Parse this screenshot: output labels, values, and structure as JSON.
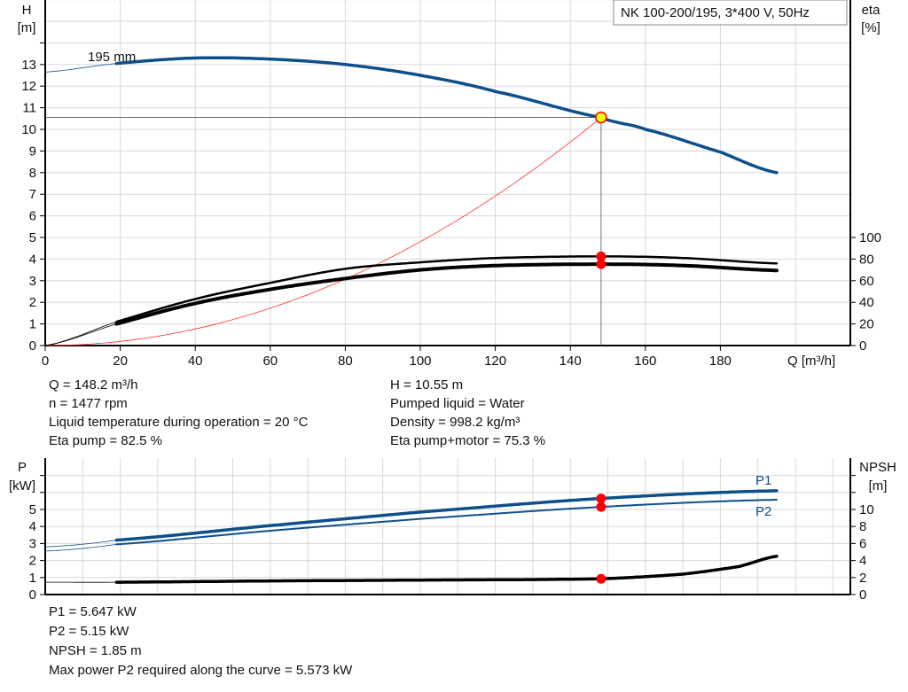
{
  "title_box": "NK 100-200/195, 3*400 V, 50Hz",
  "colors": {
    "pump_curve": "#0d4f8b",
    "efficiency": "#000000",
    "system_curve": "#ff3030",
    "duty_point_fill": "#ffff00",
    "duty_point_edge": "#ff0000",
    "marker": "#ff0000",
    "grid": "#d8d8d8"
  },
  "chart_data": [
    {
      "type": "line",
      "xlabel": "Q [m³/h]",
      "ylabel_left": [
        "H",
        "[m]"
      ],
      "ylabel_right": [
        "eta",
        "[%]"
      ],
      "xlim": [
        0,
        215
      ],
      "ylim_left": [
        0,
        16
      ],
      "ylim_right": [
        0,
        100
      ],
      "x_ticks": [
        "0",
        "20",
        "40",
        "60",
        "80",
        "100",
        "120",
        "140",
        "160",
        "180"
      ],
      "y_ticks_left": [
        "0",
        "1",
        "2",
        "3",
        "4",
        "5",
        "6",
        "7",
        "8",
        "9",
        "10",
        "11",
        "12",
        "13"
      ],
      "y_ticks_right": [
        "0",
        "20",
        "40",
        "60",
        "80",
        "100"
      ],
      "grid": true,
      "curve_label": "195 mm",
      "series": [
        {
          "key": "H",
          "axis": "left",
          "thin_until": 19,
          "x": [
            0,
            19,
            40,
            60,
            80,
            100,
            120,
            148.2,
            160,
            180,
            195
          ],
          "y": [
            12.65,
            13.05,
            13.3,
            13.25,
            13.0,
            12.5,
            11.75,
            10.55,
            10.0,
            8.95,
            8.0
          ]
        },
        {
          "key": "eta_pump",
          "axis": "right",
          "thin_until": 19,
          "x": [
            0,
            19,
            40,
            60,
            80,
            100,
            120,
            148.2,
            170,
            195
          ],
          "y": [
            0,
            22,
            43,
            58,
            71,
            77,
            81,
            82.5,
            81,
            76
          ]
        },
        {
          "key": "eta_pump_motor",
          "axis": "right",
          "thin_until": 19,
          "x": [
            0,
            19,
            40,
            60,
            80,
            100,
            120,
            148.2,
            170,
            195
          ],
          "y": [
            0,
            20,
            39,
            52,
            62,
            70,
            74,
            75.3,
            74,
            69.5
          ]
        },
        {
          "key": "system",
          "axis": "left",
          "type": "parabola",
          "x_end": 148.2,
          "y_end": 10.55
        }
      ],
      "duty_point": {
        "Q": 148.2,
        "H": 10.55,
        "eta_pump": 82.5,
        "eta_pump_motor": 75.3
      }
    },
    {
      "type": "line",
      "ylabel_left": [
        "P",
        "[kW]"
      ],
      "ylabel_right": [
        "NPSH",
        "[m]"
      ],
      "xlim": [
        0,
        215
      ],
      "ylim_left": [
        0,
        8
      ],
      "ylim_right": [
        0,
        16
      ],
      "y_ticks_left": [
        "0",
        "1",
        "2",
        "3",
        "4",
        "5"
      ],
      "y_ticks_right": [
        "0",
        "2",
        "4",
        "6",
        "8",
        "10"
      ],
      "grid": true,
      "series": [
        {
          "name": "P1",
          "axis": "left",
          "thin_until": 19,
          "x": [
            0,
            19,
            60,
            100,
            148.2,
            195
          ],
          "y": [
            2.8,
            3.2,
            4.05,
            4.85,
            5.647,
            6.1
          ]
        },
        {
          "name": "P2",
          "axis": "left",
          "thin_until": 19,
          "x": [
            0,
            19,
            60,
            100,
            148.2,
            195
          ],
          "y": [
            2.55,
            2.95,
            3.75,
            4.45,
            5.15,
            5.573
          ]
        },
        {
          "key": "NPSH",
          "axis": "right",
          "thin_until": 19,
          "x": [
            0,
            19,
            60,
            100,
            148.2,
            170,
            185,
            195
          ],
          "y": [
            1.45,
            1.45,
            1.6,
            1.7,
            1.85,
            2.4,
            3.3,
            4.5
          ]
        }
      ],
      "duty_point": {
        "Q": 148.2,
        "P1": 5.647,
        "P2": 5.15,
        "NPSH": 1.85
      }
    }
  ],
  "info_top_left": [
    "Q = 148.2 m³/h",
    "n = 1477 rpm",
    "Liquid temperature during operation = 20 °C",
    "Eta pump = 82.5 %"
  ],
  "info_top_right": [
    "H = 10.55 m",
    "Pumped liquid = Water",
    "Density = 998.2 kg/m³",
    "Eta pump+motor = 75.3 %"
  ],
  "info_bottom": [
    "P1 = 5.647 kW",
    "P2 = 5.15 kW",
    "NPSH = 1.85 m",
    "Max power P2 required along the curve = 5.573 kW"
  ]
}
